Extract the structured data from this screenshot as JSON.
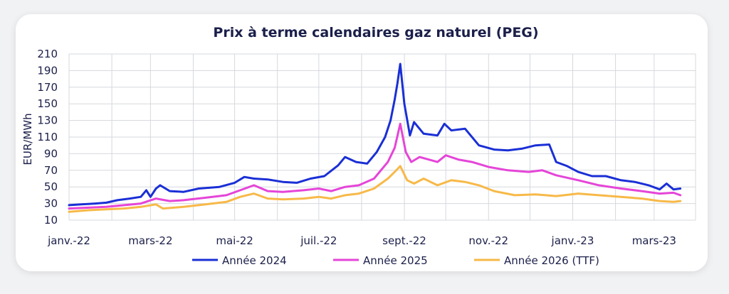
{
  "chart_data": {
    "type": "line",
    "title": "Prix à terme calendaires gaz naturel (PEG)",
    "xlabel": "",
    "ylabel": "EUR/MWh",
    "ylim": [
      10,
      210
    ],
    "yticks": [
      210,
      190,
      170,
      150,
      130,
      110,
      90,
      70,
      50,
      30,
      10
    ],
    "xticks": [
      "janv.-22",
      "mars-22",
      "mai-22",
      "juil.-22",
      "sept.-22",
      "nov.-22",
      "janv.-23",
      "mars-23"
    ],
    "xrange": [
      "2022-01-01",
      "2023-03-31"
    ],
    "grid": true,
    "legend_position": "bottom",
    "series": [
      {
        "name": "Année 2024",
        "color": "#1a2fd6",
        "points": [
          [
            "2022-01-01",
            28
          ],
          [
            "2022-01-10",
            29
          ],
          [
            "2022-01-20",
            30
          ],
          [
            "2022-01-28",
            31
          ],
          [
            "2022-02-05",
            34
          ],
          [
            "2022-02-14",
            36
          ],
          [
            "2022-02-22",
            38
          ],
          [
            "2022-02-26",
            46
          ],
          [
            "2022-03-01",
            38
          ],
          [
            "2022-03-05",
            48
          ],
          [
            "2022-03-08",
            52
          ],
          [
            "2022-03-15",
            45
          ],
          [
            "2022-03-25",
            44
          ],
          [
            "2022-04-05",
            48
          ],
          [
            "2022-04-20",
            50
          ],
          [
            "2022-05-01",
            55
          ],
          [
            "2022-05-08",
            62
          ],
          [
            "2022-05-15",
            60
          ],
          [
            "2022-05-25",
            59
          ],
          [
            "2022-06-05",
            56
          ],
          [
            "2022-06-15",
            55
          ],
          [
            "2022-06-25",
            60
          ],
          [
            "2022-07-05",
            63
          ],
          [
            "2022-07-15",
            76
          ],
          [
            "2022-07-20",
            86
          ],
          [
            "2022-07-28",
            80
          ],
          [
            "2022-08-05",
            78
          ],
          [
            "2022-08-12",
            92
          ],
          [
            "2022-08-18",
            110
          ],
          [
            "2022-08-22",
            130
          ],
          [
            "2022-08-25",
            155
          ],
          [
            "2022-08-27",
            175
          ],
          [
            "2022-08-29",
            198
          ],
          [
            "2022-09-01",
            150
          ],
          [
            "2022-09-05",
            112
          ],
          [
            "2022-09-08",
            128
          ],
          [
            "2022-09-15",
            114
          ],
          [
            "2022-09-25",
            112
          ],
          [
            "2022-09-30",
            126
          ],
          [
            "2022-10-05",
            118
          ],
          [
            "2022-10-15",
            120
          ],
          [
            "2022-10-25",
            100
          ],
          [
            "2022-11-05",
            95
          ],
          [
            "2022-11-15",
            94
          ],
          [
            "2022-11-25",
            96
          ],
          [
            "2022-12-05",
            100
          ],
          [
            "2022-12-15",
            101
          ],
          [
            "2022-12-20",
            80
          ],
          [
            "2022-12-28",
            75
          ],
          [
            "2023-01-05",
            68
          ],
          [
            "2023-01-15",
            63
          ],
          [
            "2023-01-25",
            63
          ],
          [
            "2023-02-05",
            58
          ],
          [
            "2023-02-15",
            56
          ],
          [
            "2023-02-25",
            52
          ],
          [
            "2023-03-05",
            47
          ],
          [
            "2023-03-10",
            54
          ],
          [
            "2023-03-15",
            47
          ],
          [
            "2023-03-20",
            48
          ]
        ]
      },
      {
        "name": "Année 2025",
        "color": "#e545d8",
        "points": [
          [
            "2022-01-01",
            24
          ],
          [
            "2022-01-15",
            25
          ],
          [
            "2022-01-28",
            26
          ],
          [
            "2022-02-10",
            28
          ],
          [
            "2022-02-22",
            30
          ],
          [
            "2022-03-05",
            36
          ],
          [
            "2022-03-15",
            33
          ],
          [
            "2022-03-25",
            34
          ],
          [
            "2022-04-10",
            37
          ],
          [
            "2022-04-25",
            40
          ],
          [
            "2022-05-05",
            46
          ],
          [
            "2022-05-15",
            52
          ],
          [
            "2022-05-25",
            45
          ],
          [
            "2022-06-05",
            44
          ],
          [
            "2022-06-20",
            46
          ],
          [
            "2022-07-01",
            48
          ],
          [
            "2022-07-10",
            45
          ],
          [
            "2022-07-20",
            50
          ],
          [
            "2022-07-30",
            52
          ],
          [
            "2022-08-10",
            60
          ],
          [
            "2022-08-20",
            80
          ],
          [
            "2022-08-25",
            97
          ],
          [
            "2022-08-29",
            126
          ],
          [
            "2022-09-02",
            92
          ],
          [
            "2022-09-06",
            80
          ],
          [
            "2022-09-12",
            86
          ],
          [
            "2022-09-25",
            80
          ],
          [
            "2022-10-01",
            88
          ],
          [
            "2022-10-10",
            83
          ],
          [
            "2022-10-20",
            80
          ],
          [
            "2022-11-01",
            74
          ],
          [
            "2022-11-15",
            70
          ],
          [
            "2022-11-30",
            68
          ],
          [
            "2022-12-10",
            70
          ],
          [
            "2022-12-20",
            64
          ],
          [
            "2023-01-05",
            58
          ],
          [
            "2023-01-20",
            52
          ],
          [
            "2023-02-05",
            48
          ],
          [
            "2023-02-20",
            45
          ],
          [
            "2023-03-05",
            42
          ],
          [
            "2023-03-15",
            43
          ],
          [
            "2023-03-20",
            40
          ]
        ]
      },
      {
        "name": "Année 2026 (TTF)",
        "color": "#f7b948",
        "points": [
          [
            "2022-01-01",
            20
          ],
          [
            "2022-01-15",
            22
          ],
          [
            "2022-01-28",
            23
          ],
          [
            "2022-02-10",
            24
          ],
          [
            "2022-02-22",
            26
          ],
          [
            "2022-03-05",
            29
          ],
          [
            "2022-03-10",
            24
          ],
          [
            "2022-03-25",
            26
          ],
          [
            "2022-04-10",
            29
          ],
          [
            "2022-04-25",
            32
          ],
          [
            "2022-05-05",
            38
          ],
          [
            "2022-05-15",
            42
          ],
          [
            "2022-05-25",
            36
          ],
          [
            "2022-06-05",
            35
          ],
          [
            "2022-06-20",
            36
          ],
          [
            "2022-07-01",
            38
          ],
          [
            "2022-07-10",
            36
          ],
          [
            "2022-07-20",
            40
          ],
          [
            "2022-07-30",
            42
          ],
          [
            "2022-08-10",
            48
          ],
          [
            "2022-08-20",
            60
          ],
          [
            "2022-08-25",
            68
          ],
          [
            "2022-08-29",
            75
          ],
          [
            "2022-09-03",
            58
          ],
          [
            "2022-09-08",
            54
          ],
          [
            "2022-09-15",
            60
          ],
          [
            "2022-09-25",
            52
          ],
          [
            "2022-10-05",
            58
          ],
          [
            "2022-10-15",
            56
          ],
          [
            "2022-10-25",
            52
          ],
          [
            "2022-11-05",
            45
          ],
          [
            "2022-11-20",
            40
          ],
          [
            "2022-12-05",
            41
          ],
          [
            "2022-12-20",
            39
          ],
          [
            "2023-01-05",
            42
          ],
          [
            "2023-01-20",
            40
          ],
          [
            "2023-02-05",
            38
          ],
          [
            "2023-02-20",
            36
          ],
          [
            "2023-03-05",
            33
          ],
          [
            "2023-03-15",
            32
          ],
          [
            "2023-03-20",
            33
          ]
        ]
      }
    ]
  }
}
